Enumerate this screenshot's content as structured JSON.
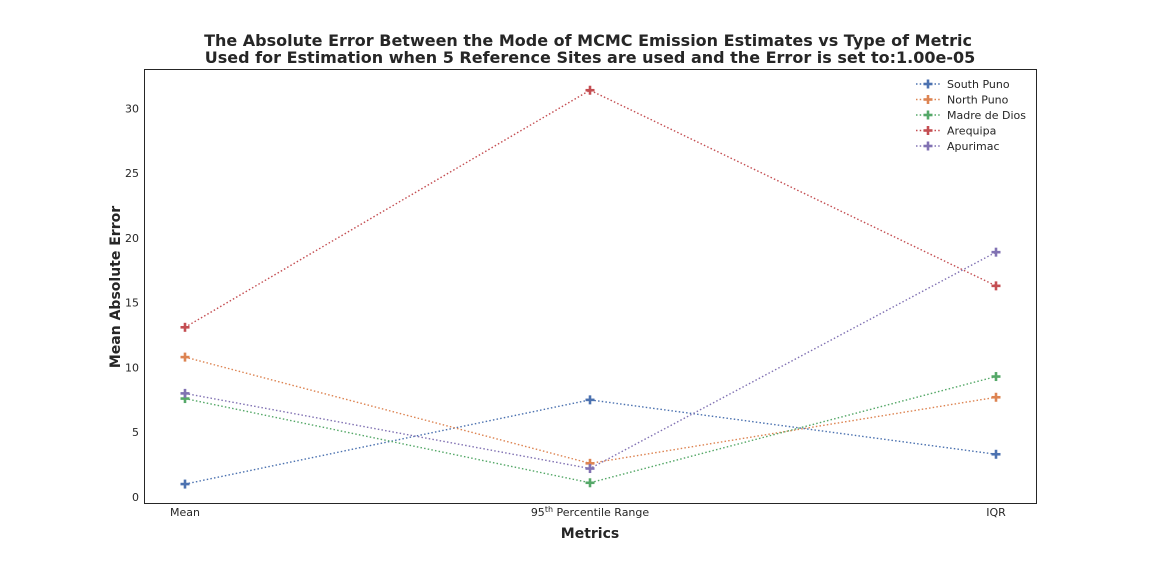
{
  "chart_data": {
    "type": "line",
    "title_line1": "The Absolute Error Between the Mode of MCMC Emission Estimates vs Type of Metric",
    "title_line2": "Used for Estimation when 5 Reference Sites are used and the Error is set to:1.00e-05",
    "xlabel": "Metrics",
    "ylabel": "Mean Absolute Error",
    "categories": [
      "Mean",
      "95th Percentile Range",
      "IQR"
    ],
    "category_labels": [
      {
        "base": "Mean",
        "sup": "",
        "rest": ""
      },
      {
        "base": "95",
        "sup": "th",
        "rest": " Percentile Range"
      },
      {
        "base": "IQR",
        "sup": "",
        "rest": ""
      }
    ],
    "ylim": [
      -0.5,
      33
    ],
    "yticks": [
      0,
      5,
      10,
      15,
      20,
      25,
      30
    ],
    "grid": false,
    "legend_position": "top-right",
    "line_style": "dotted",
    "marker": "plus",
    "series": [
      {
        "name": "South Puno",
        "color": "#4c72b0",
        "values": [
          1.0,
          7.5,
          3.3
        ]
      },
      {
        "name": "North Puno",
        "color": "#dd8452",
        "values": [
          10.8,
          2.6,
          7.7
        ]
      },
      {
        "name": "Madre de Dios",
        "color": "#55a868",
        "values": [
          7.6,
          1.1,
          9.3
        ]
      },
      {
        "name": "Arequipa",
        "color": "#c44e52",
        "values": [
          13.1,
          31.4,
          16.3
        ]
      },
      {
        "name": "Apurimac",
        "color": "#8172b3",
        "values": [
          8.0,
          2.2,
          18.9
        ]
      }
    ]
  }
}
